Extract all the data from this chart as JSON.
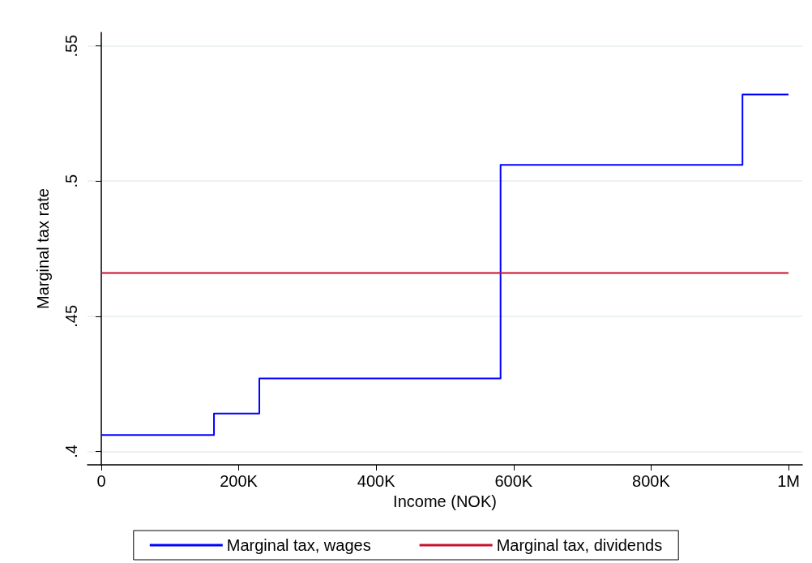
{
  "chart_data": {
    "type": "step",
    "xlabel": "Income (NOK)",
    "ylabel": "Marginal tax rate",
    "xlim": [
      -20000,
      1020000
    ],
    "xticks": [
      0,
      {
        "value": 200000,
        "label": "200K"
      },
      {
        "value": 400000,
        "label": "400K"
      },
      {
        "value": 600000,
        "label": "600K"
      },
      {
        "value": 800000,
        "label": "800K"
      },
      {
        "value": 1000000,
        "label": "1M"
      }
    ],
    "ylim": [
      0.395,
      0.555
    ],
    "yticks": [
      {
        "value": 0.4,
        "label": ".4"
      },
      {
        "value": 0.45,
        "label": ".45"
      },
      {
        "value": 0.5,
        "label": ".5"
      },
      {
        "value": 0.55,
        "label": ".55"
      }
    ],
    "grid": "y",
    "legend": "bottom",
    "series": [
      {
        "name": "Marginal tax, wages",
        "color": "#0000ff",
        "x": [
          0,
          164000,
          230000,
          581000,
          933000,
          1000000
        ],
        "values": [
          0.406,
          0.414,
          0.427,
          0.506,
          0.532,
          0.532
        ]
      },
      {
        "name": "Marginal tax, dividends",
        "color": "#c8102e",
        "type": "line",
        "x": [
          0,
          1000000
        ],
        "values": [
          0.466,
          0.466
        ]
      }
    ]
  }
}
